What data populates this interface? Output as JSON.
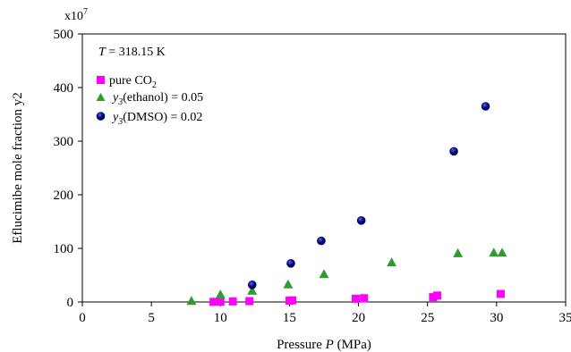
{
  "chart_data": {
    "type": "scatter",
    "multiplier_label": "x10",
    "multiplier_exp": "7",
    "annotation": {
      "var": "T",
      "text": " = 318.15 K"
    },
    "xlabel": {
      "text": "Pressure ",
      "var": "P",
      "unit": " (MPa)"
    },
    "ylabel": "Eflucimibe mole fraction y2",
    "xlim": [
      0,
      35
    ],
    "ylim": [
      0,
      500
    ],
    "x_ticks": [
      "0",
      "5",
      "10",
      "15",
      "20",
      "25",
      "30",
      "35"
    ],
    "x_tick_values": [
      0,
      5,
      10,
      15,
      20,
      25,
      30,
      35
    ],
    "y_ticks": [
      "0",
      "100",
      "200",
      "300",
      "400",
      "500"
    ],
    "y_tick_values": [
      0,
      100,
      200,
      300,
      400,
      500
    ],
    "legend_position": "top-left",
    "series": [
      {
        "name": "pure CO",
        "name_sub": "2",
        "name_var": "",
        "name_rest": "",
        "marker": "square",
        "color": "#ff00ff",
        "x": [
          9.5,
          10.0,
          10.9,
          12.1,
          15.0,
          15.2,
          19.8,
          20.4,
          25.4,
          25.7,
          30.3
        ],
        "y": [
          0.3,
          0.5,
          1.0,
          1.5,
          2.5,
          3.0,
          6.0,
          7.0,
          9.0,
          12.0,
          15.0
        ]
      },
      {
        "name": "",
        "name_var": "y",
        "name_sub": "3",
        "name_rest": "(ethanol) = 0.05",
        "marker": "triangle",
        "color": "#339933",
        "x": [
          7.9,
          10.0,
          12.3,
          14.9,
          17.5,
          22.4,
          27.2,
          29.8,
          30.4
        ],
        "y": [
          2,
          14,
          21,
          33,
          52,
          74,
          91,
          92,
          92
        ]
      },
      {
        "name": "",
        "name_var": "y",
        "name_sub": "3",
        "name_rest": "(DMSO) = 0.02",
        "marker": "circle",
        "color": "#000080",
        "x": [
          12.3,
          15.1,
          17.3,
          20.2,
          26.9,
          29.2
        ],
        "y": [
          32,
          72,
          114,
          152,
          281,
          365
        ]
      }
    ]
  }
}
